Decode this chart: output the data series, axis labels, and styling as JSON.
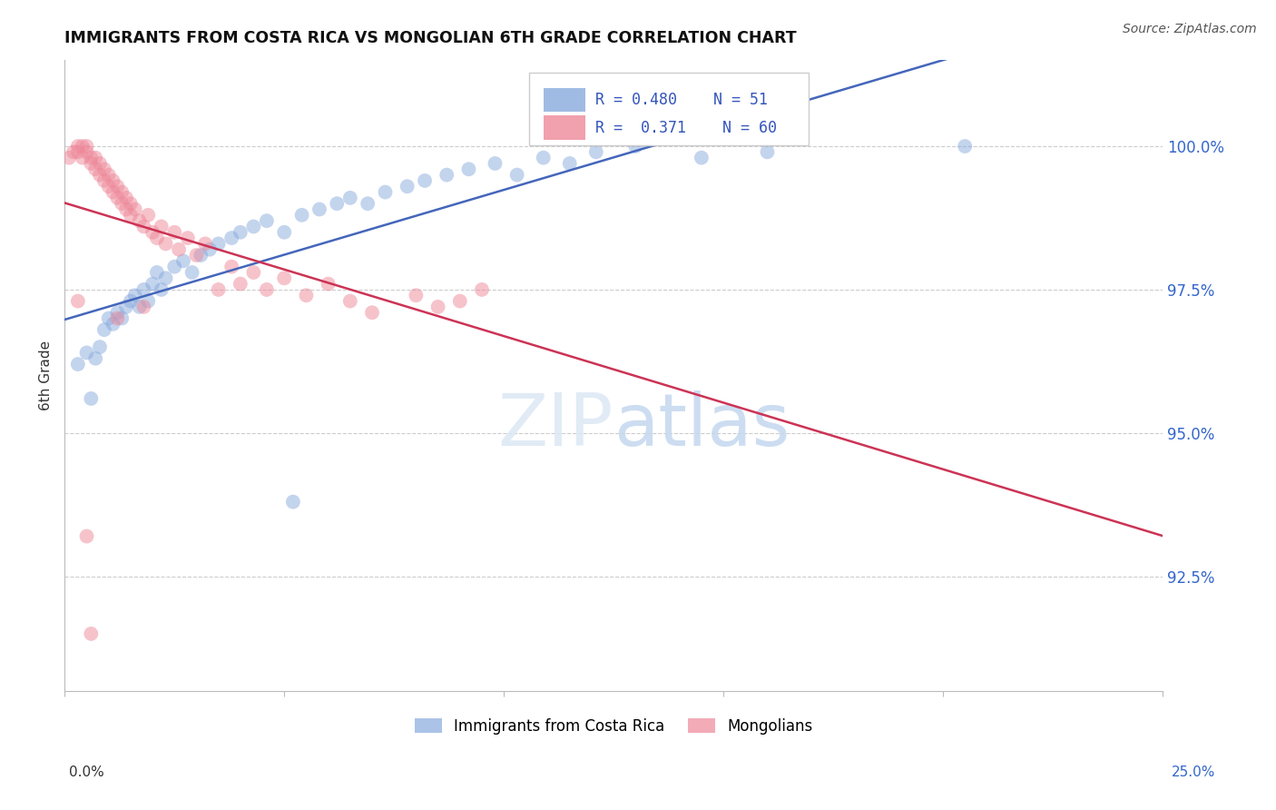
{
  "title": "IMMIGRANTS FROM COSTA RICA VS MONGOLIAN 6TH GRADE CORRELATION CHART",
  "source": "Source: ZipAtlas.com",
  "ylabel": "6th Grade",
  "ytick_values": [
    92.5,
    95.0,
    97.5,
    100.0
  ],
  "xlim": [
    0.0,
    25.0
  ],
  "ylim": [
    90.5,
    101.5
  ],
  "legend_blue_label": "Immigrants from Costa Rica",
  "legend_pink_label": "Mongolians",
  "R_blue": 0.48,
  "N_blue": 51,
  "R_pink": 0.371,
  "N_pink": 60,
  "blue_color": "#88AADD",
  "pink_color": "#EE8899",
  "line_blue_color": "#4466BB",
  "line_pink_color": "#CC3355",
  "blue_x": [
    0.3,
    0.5,
    0.6,
    0.7,
    0.8,
    0.9,
    1.0,
    1.1,
    1.2,
    1.3,
    1.4,
    1.5,
    1.6,
    1.7,
    1.8,
    1.9,
    2.0,
    2.1,
    2.2,
    2.3,
    2.5,
    2.7,
    2.9,
    3.1,
    3.3,
    3.5,
    3.8,
    4.0,
    4.3,
    4.6,
    5.0,
    5.4,
    5.8,
    6.2,
    6.5,
    6.9,
    7.3,
    7.8,
    8.2,
    8.7,
    9.2,
    9.8,
    10.3,
    10.9,
    11.5,
    12.1,
    13.0,
    14.5,
    16.0,
    20.5,
    5.2
  ],
  "blue_y": [
    96.2,
    96.4,
    95.6,
    96.3,
    96.5,
    96.8,
    97.0,
    96.9,
    97.1,
    97.0,
    97.2,
    97.3,
    97.4,
    97.2,
    97.5,
    97.3,
    97.6,
    97.8,
    97.5,
    97.7,
    97.9,
    98.0,
    97.8,
    98.1,
    98.2,
    98.3,
    98.4,
    98.5,
    98.6,
    98.7,
    98.5,
    98.8,
    98.9,
    99.0,
    99.1,
    99.0,
    99.2,
    99.3,
    99.4,
    99.5,
    99.6,
    99.7,
    99.5,
    99.8,
    99.7,
    99.9,
    100.0,
    99.8,
    99.9,
    100.0,
    93.8
  ],
  "pink_x": [
    0.1,
    0.2,
    0.3,
    0.3,
    0.4,
    0.4,
    0.5,
    0.5,
    0.6,
    0.6,
    0.7,
    0.7,
    0.8,
    0.8,
    0.9,
    0.9,
    1.0,
    1.0,
    1.1,
    1.1,
    1.2,
    1.2,
    1.3,
    1.3,
    1.4,
    1.4,
    1.5,
    1.5,
    1.6,
    1.7,
    1.8,
    1.9,
    2.0,
    2.1,
    2.2,
    2.3,
    2.5,
    2.6,
    2.8,
    3.0,
    3.2,
    3.5,
    3.8,
    4.0,
    4.3,
    4.6,
    5.0,
    5.5,
    6.0,
    6.5,
    7.0,
    8.0,
    8.5,
    9.0,
    9.5,
    0.3,
    1.2,
    1.8,
    0.6,
    0.5
  ],
  "pink_y": [
    99.8,
    99.9,
    100.0,
    99.9,
    100.0,
    99.8,
    99.9,
    100.0,
    99.7,
    99.8,
    99.6,
    99.8,
    99.7,
    99.5,
    99.6,
    99.4,
    99.5,
    99.3,
    99.4,
    99.2,
    99.3,
    99.1,
    99.2,
    99.0,
    99.1,
    98.9,
    99.0,
    98.8,
    98.9,
    98.7,
    98.6,
    98.8,
    98.5,
    98.4,
    98.6,
    98.3,
    98.5,
    98.2,
    98.4,
    98.1,
    98.3,
    97.5,
    97.9,
    97.6,
    97.8,
    97.5,
    97.7,
    97.4,
    97.6,
    97.3,
    97.1,
    97.4,
    97.2,
    97.3,
    97.5,
    97.3,
    97.0,
    97.2,
    91.5,
    93.2
  ]
}
